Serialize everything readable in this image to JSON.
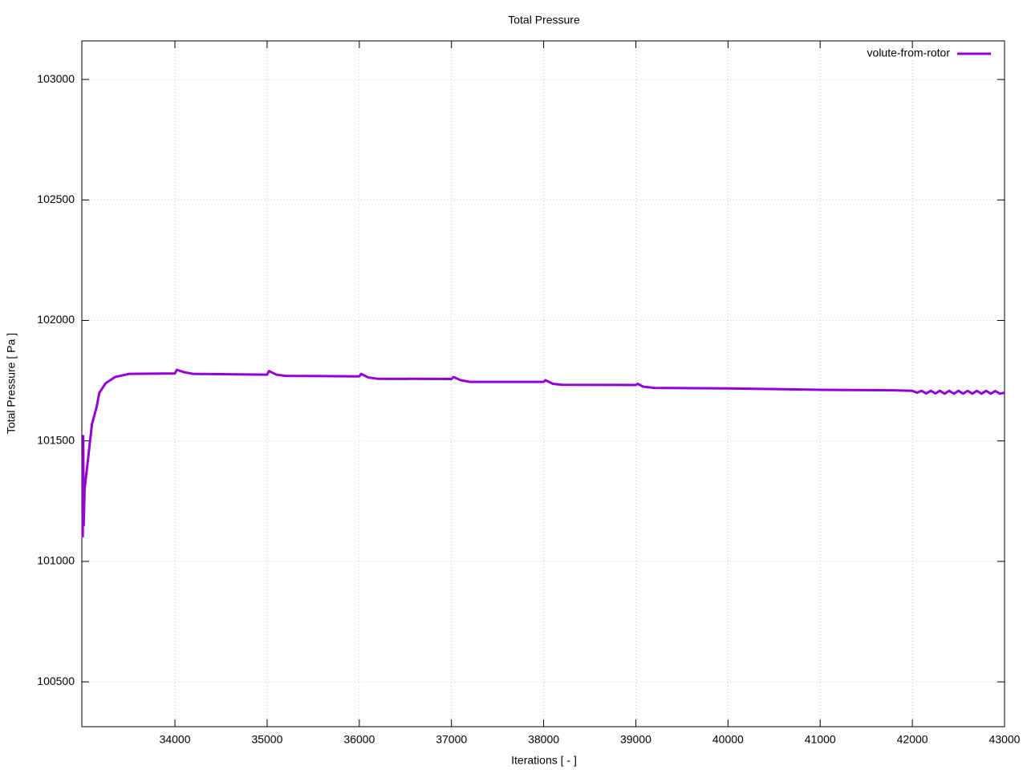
{
  "chart_data": {
    "type": "line",
    "title": "Total Pressure",
    "x_label": "Iterations [ - ]",
    "y_label": "Total Pressure [ Pa ]",
    "x": [
      33000,
      33005,
      33010,
      33020,
      33050,
      33100,
      33150,
      33180,
      33250,
      33350,
      33500,
      34000,
      34020,
      34100,
      34200,
      35000,
      35020,
      35100,
      35200,
      36000,
      36020,
      36100,
      36200,
      37000,
      37020,
      37100,
      37200,
      38000,
      38020,
      38100,
      38200,
      39000,
      39020,
      39080,
      39200,
      40000,
      41000,
      41800,
      42000,
      42050,
      42100,
      42150,
      42200,
      42250,
      42300,
      42350,
      42400,
      42450,
      42500,
      42550,
      42600,
      42650,
      42700,
      42750,
      42800,
      42850,
      42900,
      42950,
      43000
    ],
    "series": [
      {
        "name": "volute-from-rotor",
        "color": "#9400d3",
        "values": [
          101100,
          101520,
          101150,
          101300,
          101400,
          101570,
          101640,
          101700,
          101740,
          101765,
          101778,
          101780,
          101795,
          101785,
          101778,
          101775,
          101790,
          101775,
          101770,
          101768,
          101778,
          101763,
          101758,
          101757,
          101765,
          101752,
          101745,
          101745,
          101752,
          101737,
          101733,
          101732,
          101737,
          101725,
          101720,
          101718,
          101712,
          101710,
          101708,
          101700,
          101708,
          101697,
          101708,
          101697,
          101708,
          101696,
          101708,
          101696,
          101708,
          101696,
          101708,
          101696,
          101708,
          101696,
          101708,
          101696,
          101707,
          101696,
          101700
        ]
      }
    ],
    "xlim": [
      32990,
      43000
    ],
    "ylim": [
      100314,
      103160
    ],
    "xticks": [
      34000,
      35000,
      36000,
      37000,
      38000,
      39000,
      40000,
      41000,
      42000,
      43000
    ],
    "yticks": [
      100500,
      101000,
      101500,
      102000,
      102500,
      103000
    ],
    "grid": true,
    "legend": "top-right"
  }
}
